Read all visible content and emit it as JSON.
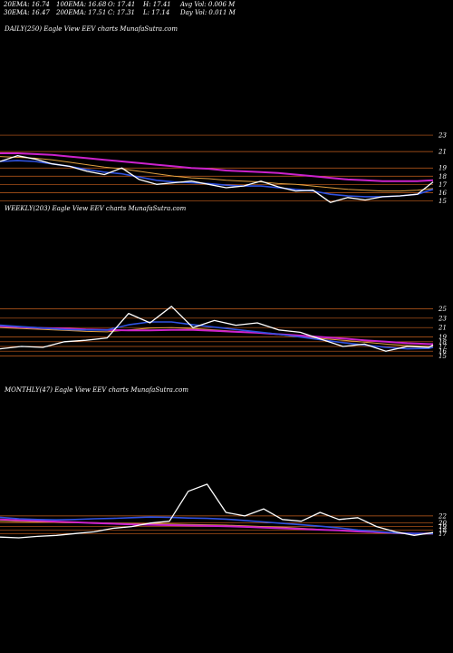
{
  "stats": {
    "ema20": "20EMA: 16.74",
    "ema100": "100EMA: 16.68",
    "open": "O: 17.41",
    "high": "H: 17.41",
    "avg_vol": "Avg Vol: 0.006  M",
    "ema30": "30EMA: 16.47",
    "ema200": "200EMA: 17.51",
    "close": "C: 17.31",
    "low": "L: 17.14",
    "day_vol": "Day Vol: 0.011  M"
  },
  "colors": {
    "background": "#000000",
    "price": "#ffffff",
    "ema_fast": "#2f52e0",
    "ema_slow": "#cc22cc",
    "ema_mid": "#e0a040",
    "gridline": "#c8601e"
  },
  "chart_data": [
    {
      "type": "line",
      "title": "DAILY(250) Eagle   View  EEV charts MunafaSutra.com",
      "ylim": [
        13.5,
        24
      ],
      "yticks": [
        "23",
        "21",
        "19",
        "18",
        "17",
        "16",
        "15"
      ],
      "ytick_values": [
        23,
        21,
        19,
        18,
        17,
        16,
        15
      ],
      "x": [
        0,
        10,
        20,
        30,
        40,
        50,
        60,
        70,
        80,
        90,
        100,
        110,
        120,
        130,
        140,
        150,
        160,
        170,
        180,
        190,
        200,
        210,
        220,
        230,
        240,
        249
      ],
      "series": [
        {
          "role": "price",
          "values": [
            19.8,
            20.5,
            20.1,
            19.5,
            19.2,
            18.6,
            18.2,
            19.0,
            17.6,
            17.0,
            17.2,
            17.4,
            17.0,
            16.6,
            16.8,
            17.4,
            16.7,
            16.2,
            16.3,
            14.8,
            15.4,
            15.1,
            15.5,
            15.6,
            15.8,
            17.3
          ]
        },
        {
          "role": "ema-blue",
          "values": [
            19.8,
            19.9,
            19.8,
            19.5,
            19.2,
            18.8,
            18.5,
            18.3,
            17.9,
            17.5,
            17.3,
            17.2,
            17.1,
            16.9,
            16.8,
            16.8,
            16.6,
            16.4,
            16.2,
            15.8,
            15.6,
            15.5,
            15.5,
            15.6,
            15.8,
            16.4
          ]
        },
        {
          "role": "ema-orange",
          "values": [
            20.4,
            20.3,
            20.2,
            20.0,
            19.7,
            19.4,
            19.1,
            18.9,
            18.6,
            18.3,
            18.0,
            17.8,
            17.7,
            17.5,
            17.4,
            17.3,
            17.1,
            17.0,
            16.8,
            16.6,
            16.4,
            16.3,
            16.2,
            16.2,
            16.3,
            16.5
          ]
        },
        {
          "role": "ema-magenta",
          "values": [
            20.8,
            20.8,
            20.7,
            20.6,
            20.4,
            20.2,
            20.0,
            19.8,
            19.6,
            19.4,
            19.2,
            19.0,
            18.9,
            18.7,
            18.6,
            18.5,
            18.4,
            18.2,
            18.0,
            17.8,
            17.6,
            17.5,
            17.4,
            17.4,
            17.4,
            17.5
          ]
        }
      ]
    },
    {
      "type": "line",
      "title": "WEEKLY(203) Eagle   View  EEV charts MunafaSutra.com",
      "ylim": [
        14.5,
        27
      ],
      "yticks": [
        "25",
        "23",
        "21",
        "19",
        "18",
        "17",
        "16",
        "15"
      ],
      "ytick_values": [
        25,
        23,
        21,
        19,
        18,
        17,
        16,
        15
      ],
      "x": [
        0,
        10,
        20,
        30,
        40,
        50,
        60,
        70,
        80,
        90,
        100,
        110,
        120,
        130,
        140,
        150,
        160,
        170,
        180,
        190,
        200,
        202
      ],
      "series": [
        {
          "role": "price",
          "values": [
            16.5,
            17.0,
            16.8,
            18.0,
            18.3,
            18.8,
            24.0,
            22.0,
            25.5,
            21.0,
            22.5,
            21.5,
            22.0,
            20.5,
            20.0,
            18.5,
            17.0,
            17.5,
            16.0,
            17.0,
            16.8,
            17.3
          ]
        },
        {
          "role": "ema-blue",
          "values": [
            21.5,
            21.2,
            20.9,
            20.6,
            20.5,
            20.5,
            21.6,
            22.2,
            22.2,
            21.6,
            21.1,
            20.6,
            20.1,
            19.6,
            19.0,
            18.4,
            17.8,
            17.3,
            16.8,
            16.5,
            16.6,
            16.8
          ]
        },
        {
          "role": "ema-orange",
          "values": [
            21.0,
            20.8,
            20.6,
            20.4,
            20.2,
            20.1,
            20.5,
            20.9,
            21.0,
            20.8,
            20.5,
            20.2,
            19.9,
            19.5,
            19.1,
            18.7,
            18.3,
            17.9,
            17.5,
            17.2,
            17.0,
            17.0
          ]
        },
        {
          "role": "ema-magenta",
          "values": [
            21.3,
            21.1,
            20.9,
            20.8,
            20.6,
            20.5,
            20.4,
            20.4,
            20.5,
            20.5,
            20.3,
            20.1,
            19.9,
            19.6,
            19.3,
            19.0,
            18.7,
            18.3,
            18.0,
            17.7,
            17.5,
            17.5
          ]
        }
      ]
    },
    {
      "type": "line",
      "title": "MONTHLY(47) Eagle   View  EEV charts MunafaSutra.com",
      "ylim": [
        14,
        32
      ],
      "yticks": [
        "22",
        "20",
        "19",
        "18",
        "17"
      ],
      "ytick_values": [
        22,
        20,
        19,
        18,
        17
      ],
      "x": [
        0,
        2,
        4,
        6,
        8,
        10,
        12,
        14,
        16,
        18,
        20,
        22,
        24,
        26,
        28,
        30,
        32,
        34,
        36,
        38,
        40,
        42,
        44,
        46
      ],
      "series": [
        {
          "role": "price",
          "values": [
            16.0,
            15.8,
            16.2,
            16.5,
            17.0,
            17.5,
            18.5,
            19.0,
            20.0,
            20.5,
            29.0,
            31.0,
            23.0,
            22.0,
            24.0,
            21.0,
            20.5,
            23.0,
            21.0,
            21.5,
            19.0,
            17.5,
            16.5,
            17.3
          ]
        },
        {
          "role": "ema-blue",
          "values": [
            21.6,
            21.2,
            21.0,
            20.9,
            21.0,
            21.2,
            21.3,
            21.5,
            21.7,
            21.6,
            21.4,
            21.3,
            21.1,
            20.7,
            20.3,
            19.9,
            19.5,
            19.1,
            18.6,
            18.0,
            17.6,
            17.2,
            17.0,
            17.0
          ]
        },
        {
          "role": "ema-orange",
          "values": [
            20.5,
            20.4,
            20.3,
            20.3,
            20.2,
            20.1,
            20.0,
            19.9,
            19.8,
            19.7,
            19.6,
            19.5,
            19.4,
            19.2,
            19.0,
            18.8,
            18.5,
            18.2,
            17.9,
            17.6,
            17.3,
            17.0,
            16.9,
            16.9
          ]
        },
        {
          "role": "ema-magenta",
          "values": [
            21.0,
            20.8,
            20.6,
            20.4,
            20.2,
            20.0,
            19.8,
            19.6,
            19.5,
            19.4,
            19.3,
            19.2,
            19.1,
            18.9,
            18.7,
            18.5,
            18.3,
            18.1,
            17.9,
            17.6,
            17.4,
            17.2,
            17.0,
            17.0
          ]
        }
      ]
    }
  ]
}
